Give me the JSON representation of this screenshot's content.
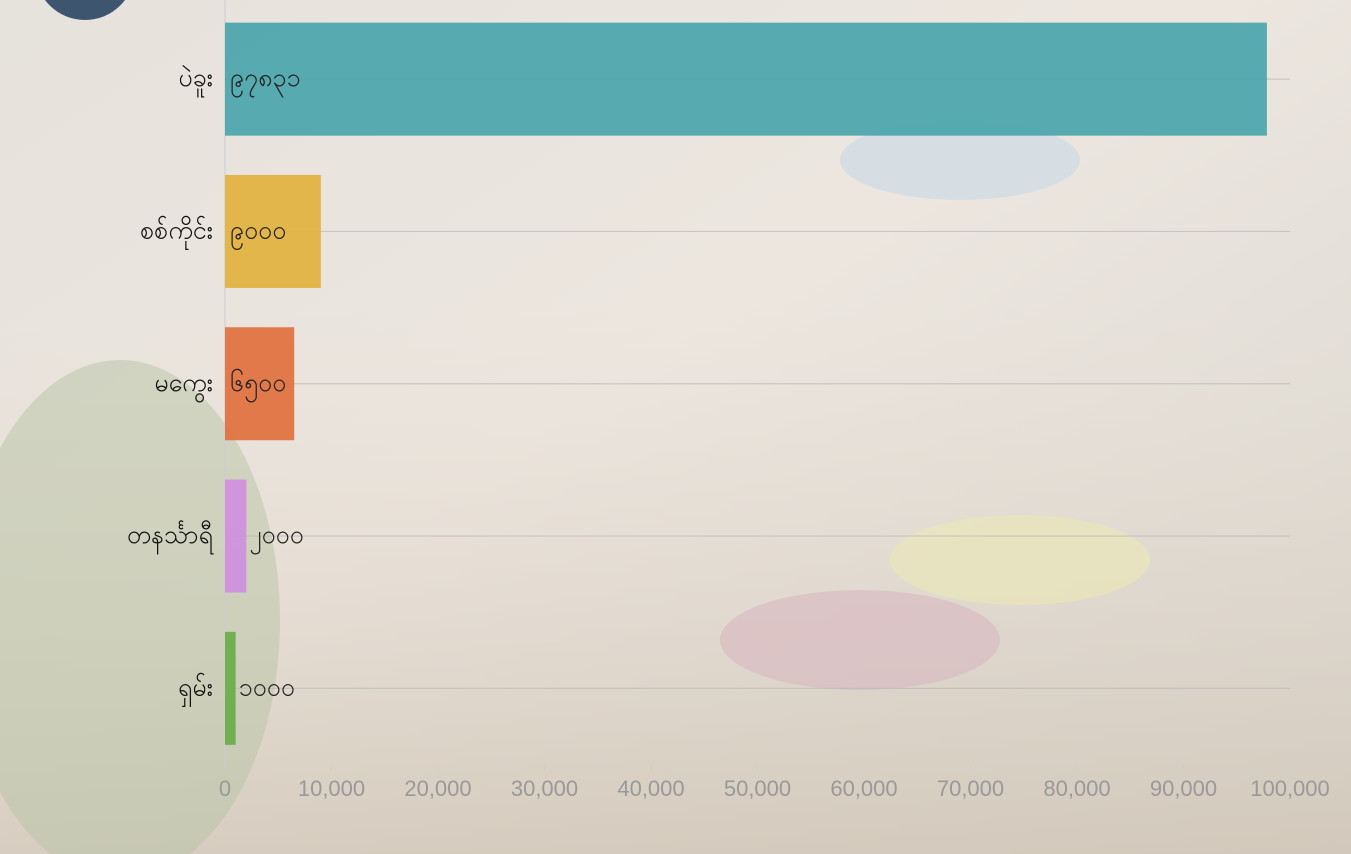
{
  "chart_data": {
    "type": "bar",
    "orientation": "horizontal",
    "categories": [
      "ပဲခူး",
      "စစ်ကိုင်း",
      "မကွေး",
      "တနင်္သာရီ",
      "ရှမ်း"
    ],
    "values": [
      97831,
      9000,
      6500,
      2000,
      1000
    ],
    "value_labels": [
      "၉၇၈၃၁",
      "၉၀၀၀",
      "၆၅၀၀",
      "၂၀၀၀",
      "၁၀၀၀"
    ],
    "colors": [
      "#4aa5aa",
      "#e2b23e",
      "#e0703e",
      "#cf8fdd",
      "#6aad48"
    ],
    "xlim": [
      0,
      100000
    ],
    "xticks": [
      0,
      {
        "value": 10000,
        "label": "10,000"
      },
      {
        "value": 20000,
        "label": "20,000"
      },
      {
        "value": 30000,
        "label": "30,000"
      },
      {
        "value": 40000,
        "label": "40,000"
      },
      {
        "value": 50000,
        "label": "50,000"
      },
      {
        "value": 60000,
        "label": "60,000"
      },
      {
        "value": 70000,
        "label": "70,000"
      },
      {
        "value": 80000,
        "label": "80,000"
      },
      {
        "value": 90000,
        "label": "90,000"
      },
      {
        "value": 100000,
        "label": "100,000"
      }
    ],
    "grid": true
  }
}
